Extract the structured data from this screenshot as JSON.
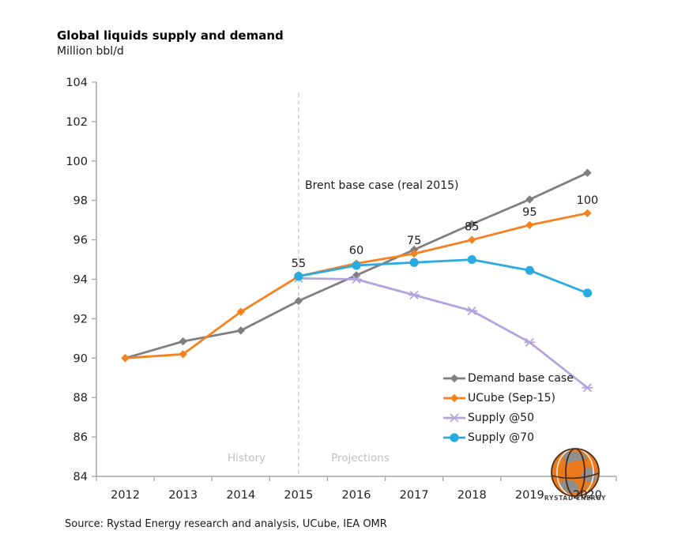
{
  "header": {
    "title": "Global liquids supply and demand",
    "subtitle": "Million bbl/d"
  },
  "annotation": {
    "text": "Brent base case (real 2015)"
  },
  "phase_labels": {
    "history": "History",
    "projections": "Projections"
  },
  "source": {
    "text": "Source: Rystad Energy research and analysis, UCube, IEA OMR"
  },
  "logo": {
    "text": "RYSTAD ENERGY"
  },
  "colors": {
    "demand": "#7F7F7F",
    "ucube": "#F58220",
    "supply50": "#B4A4DE",
    "supply70": "#29ABE2",
    "axis": "#A6A6A6",
    "muted_text": "#BFBFBF",
    "text": "#1A1A1A",
    "dashed_line": "#C9C9C9"
  },
  "chart_data": {
    "type": "line",
    "title": "Global liquids supply and demand",
    "ylabel": "Million bbl/d",
    "categories": [
      "2012",
      "2013",
      "2014",
      "2015",
      "2016",
      "2017",
      "2018",
      "2019",
      "2020"
    ],
    "ylim": [
      84,
      104
    ],
    "ytick_step": 2,
    "grid": false,
    "legend_position": "inside-bottom-right",
    "divider_at_category": "2015",
    "series": [
      {
        "name": "Demand base case",
        "color_key": "demand",
        "marker": "diamond",
        "values": [
          90.0,
          90.85,
          91.4,
          92.9,
          94.2,
          95.5,
          96.8,
          98.05,
          99.4
        ]
      },
      {
        "name": "UCube (Sep-15)",
        "color_key": "ucube",
        "marker": "diamond",
        "values": [
          90.0,
          90.2,
          92.35,
          94.15,
          94.8,
          95.3,
          96.0,
          96.75,
          97.35
        ],
        "point_labels": [
          null,
          null,
          null,
          "55",
          "60",
          "75",
          "85",
          "95",
          "100"
        ]
      },
      {
        "name": "Supply @50",
        "color_key": "supply50",
        "marker": "asterisk",
        "values": [
          null,
          null,
          null,
          94.05,
          94.0,
          93.2,
          92.4,
          90.8,
          88.5
        ]
      },
      {
        "name": "Supply @70",
        "color_key": "supply70",
        "marker": "circle",
        "values": [
          null,
          null,
          null,
          94.15,
          94.7,
          94.85,
          95.0,
          94.45,
          93.3
        ]
      }
    ]
  }
}
